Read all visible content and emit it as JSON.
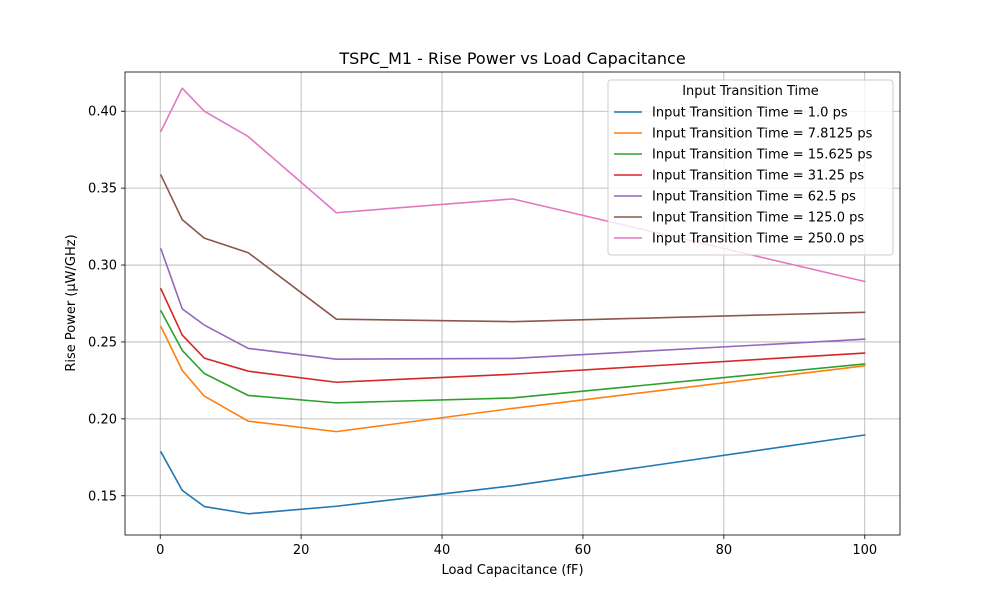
{
  "chart_data": {
    "type": "line",
    "title": "TSPC_M1 - Rise Power vs Load Capacitance",
    "xlabel": "Load Capacitance (fF)",
    "ylabel": "Rise Power (µW/GHz)",
    "xlim": [
      -5,
      105
    ],
    "ylim": [
      0.1245,
      0.4255
    ],
    "xticks": [
      "0",
      "20",
      "40",
      "60",
      "80",
      "100"
    ],
    "yticks": [
      "0.15",
      "0.20",
      "0.25",
      "0.30",
      "0.35",
      "0.40"
    ],
    "grid": true,
    "legend": {
      "title": "Input Transition Time",
      "placement": "top-right"
    },
    "x": [
      0.1,
      3.125,
      6.25,
      12.5,
      25,
      50,
      100
    ],
    "series": [
      {
        "name": "Input Transition Time = 1.0 ps",
        "color": "#1f77b4",
        "values": [
          0.1785,
          0.1535,
          0.143,
          0.1383,
          0.1432,
          0.1565,
          0.1895
        ]
      },
      {
        "name": "Input Transition Time = 7.8125 ps",
        "color": "#ff7f0e",
        "values": [
          0.26,
          0.2315,
          0.2148,
          0.1985,
          0.1917,
          0.2068,
          0.2345
        ]
      },
      {
        "name": "Input Transition Time = 15.625 ps",
        "color": "#2ca02c",
        "values": [
          0.2702,
          0.2445,
          0.2295,
          0.2152,
          0.2104,
          0.2136,
          0.2357
        ]
      },
      {
        "name": "Input Transition Time = 31.25 ps",
        "color": "#d62728",
        "values": [
          0.2845,
          0.2545,
          0.2395,
          0.231,
          0.2238,
          0.229,
          0.2428
        ]
      },
      {
        "name": "Input Transition Time = 62.5 ps",
        "color": "#9467bd",
        "values": [
          0.3105,
          0.2715,
          0.261,
          0.2458,
          0.2388,
          0.2393,
          0.2518
        ]
      },
      {
        "name": "Input Transition Time = 125.0 ps",
        "color": "#8c564b",
        "values": [
          0.3585,
          0.3295,
          0.3175,
          0.308,
          0.2648,
          0.2632,
          0.2693
        ]
      },
      {
        "name": "Input Transition Time = 250.0 ps",
        "color": "#e377c2",
        "values": [
          0.387,
          0.415,
          0.4,
          0.3835,
          0.334,
          0.343,
          0.2893
        ]
      }
    ]
  }
}
